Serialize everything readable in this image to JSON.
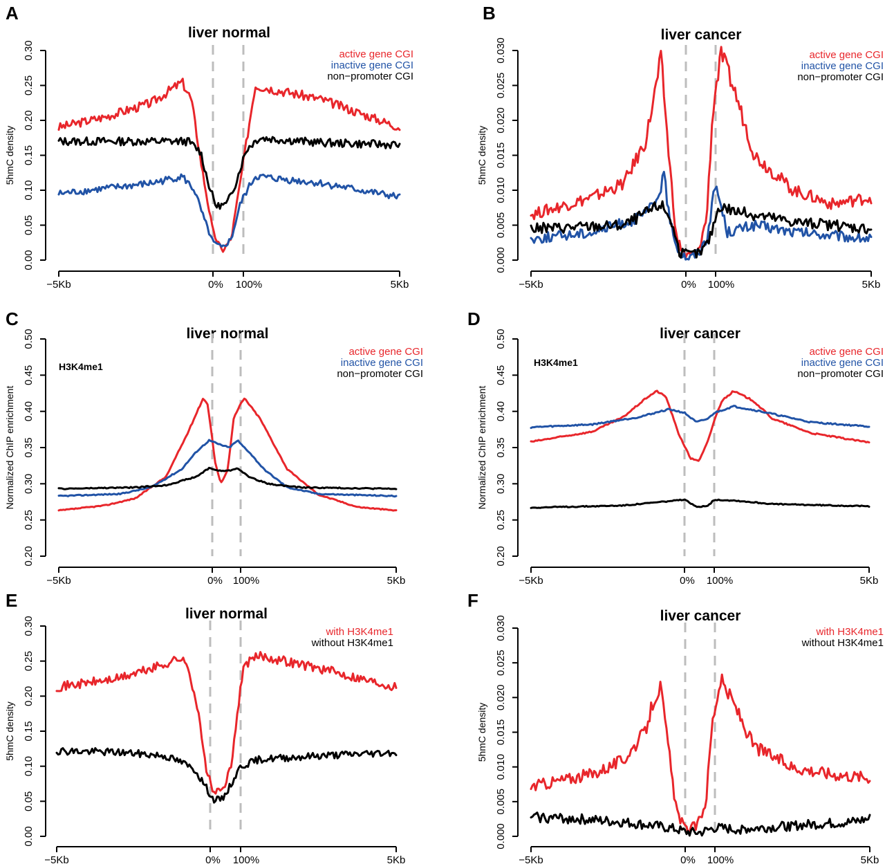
{
  "colors": {
    "red": "#e8262b",
    "blue": "#2153a6",
    "black": "#000000",
    "dash": "#bdbdbd"
  },
  "chart_data": [
    {
      "panel": "A",
      "type": "line",
      "title": "liver normal",
      "ylabel": "5hmC density",
      "ylim": [
        0,
        0.3
      ],
      "yticks": [
        "0.00",
        "0.05",
        "0.10",
        "0.15",
        "0.20",
        "0.25",
        "0.30"
      ],
      "xticks": [
        "−5Kb",
        "0%",
        "100%",
        "5Kb"
      ],
      "xlim": [
        -5000,
        5000
      ],
      "region": [
        0,
        100
      ],
      "legend": [
        "active gene CGI",
        "inactive gene CGI",
        "non−promoter CGI"
      ],
      "annotation": "",
      "series": [
        {
          "name": "active gene CGI",
          "color": "#e8262b",
          "x": [
            -5000,
            -3500,
            -2000,
            -1000,
            -700,
            -350,
            0,
            300,
            600,
            1000,
            1300,
            3000,
            5000
          ],
          "y": [
            0.19,
            0.205,
            0.225,
            0.255,
            0.23,
            0.13,
            0.04,
            0.013,
            0.03,
            0.14,
            0.25,
            0.23,
            0.19
          ]
        },
        {
          "name": "inactive gene CGI",
          "color": "#2153a6",
          "x": [
            -5000,
            -2000,
            -1000,
            -600,
            -300,
            0,
            300,
            600,
            900,
            1300,
            3000,
            5000
          ],
          "y": [
            0.095,
            0.11,
            0.12,
            0.1,
            0.06,
            0.025,
            0.017,
            0.03,
            0.08,
            0.12,
            0.11,
            0.09
          ]
        },
        {
          "name": "non−promoter CGI",
          "color": "#000000",
          "x": [
            -5000,
            -2000,
            -800,
            -400,
            -150,
            100,
            450,
            750,
            1100,
            1400,
            3000,
            5000
          ],
          "y": [
            0.17,
            0.17,
            0.17,
            0.155,
            0.11,
            0.077,
            0.08,
            0.11,
            0.16,
            0.175,
            0.168,
            0.165
          ]
        }
      ]
    },
    {
      "panel": "B",
      "type": "line",
      "title": "liver cancer",
      "ylabel": "5hmC density",
      "ylim": [
        0,
        0.03
      ],
      "yticks": [
        "0.000",
        "0.005",
        "0.010",
        "0.015",
        "0.020",
        "0.025",
        "0.030"
      ],
      "xticks": [
        "−5Kb",
        "0%",
        "100%",
        "5Kb"
      ],
      "xlim": [
        -5000,
        5000
      ],
      "region": [
        0,
        100
      ],
      "legend": [
        "active gene CGI",
        "inactive gene CGI",
        "non−promoter CGI"
      ],
      "annotation": "",
      "series": [
        {
          "name": "active gene CGI",
          "color": "#e8262b",
          "x": [
            -5000,
            -3000,
            -2000,
            -1300,
            -1000,
            -800,
            -550,
            -300,
            0,
            400,
            700,
            900,
            1150,
            1500,
            2000,
            3000,
            4000,
            5000
          ],
          "y": [
            0.0065,
            0.009,
            0.011,
            0.017,
            0.024,
            0.029,
            0.015,
            0.003,
            0.0005,
            0.001,
            0.006,
            0.021,
            0.0295,
            0.024,
            0.015,
            0.01,
            0.008,
            0.009
          ]
        },
        {
          "name": "inactive gene CGI",
          "color": "#2153a6",
          "x": [
            -5000,
            -3000,
            -1500,
            -1000,
            -700,
            -500,
            -200,
            100,
            400,
            700,
            1000,
            1300,
            2000,
            3000,
            5000
          ],
          "y": [
            0.003,
            0.004,
            0.006,
            0.008,
            0.012,
            0.005,
            0.001,
            0.0003,
            0.001,
            0.003,
            0.011,
            0.004,
            0.005,
            0.004,
            0.003
          ]
        },
        {
          "name": "non−promoter CGI",
          "color": "#000000",
          "x": [
            -5000,
            -2000,
            -800,
            -500,
            -200,
            100,
            500,
            800,
            1100,
            1500,
            3000,
            5000
          ],
          "y": [
            0.0045,
            0.005,
            0.008,
            0.006,
            0.001,
            0.0008,
            0.001,
            0.003,
            0.0078,
            0.007,
            0.0055,
            0.0045
          ]
        }
      ]
    },
    {
      "panel": "C",
      "type": "line",
      "title": "liver normal",
      "ylabel": "Normalized ChIP enrichment",
      "ylim": [
        0.2,
        0.5
      ],
      "yticks": [
        "0.20",
        "0.25",
        "0.30",
        "0.35",
        "0.40",
        "0.45",
        "0.50"
      ],
      "xticks": [
        "−5Kb",
        "0%",
        "100%",
        "5Kb"
      ],
      "xlim": [
        -5000,
        5000
      ],
      "region": [
        0,
        100
      ],
      "legend": [
        "active gene CGI",
        "inactive gene CGI",
        "non−promoter CGI"
      ],
      "annotation": "H3K4me1",
      "series": [
        {
          "name": "active gene CGI",
          "color": "#e8262b",
          "x": [
            -5000,
            -3500,
            -2500,
            -1500,
            -800,
            -300,
            -150,
            100,
            300,
            550,
            750,
            1100,
            1500,
            2200,
            3000,
            4000,
            5000
          ],
          "y": [
            0.263,
            0.27,
            0.28,
            0.31,
            0.37,
            0.418,
            0.41,
            0.33,
            0.3,
            0.32,
            0.39,
            0.418,
            0.39,
            0.32,
            0.285,
            0.268,
            0.263
          ]
        },
        {
          "name": "inactive gene CGI",
          "color": "#2153a6",
          "x": [
            -5000,
            -3000,
            -2000,
            -1000,
            -500,
            -100,
            200,
            600,
            900,
            1200,
            1600,
            2200,
            3000,
            5000
          ],
          "y": [
            0.283,
            0.286,
            0.295,
            0.32,
            0.345,
            0.36,
            0.355,
            0.35,
            0.36,
            0.345,
            0.32,
            0.295,
            0.286,
            0.283
          ]
        },
        {
          "name": "non−promoter CGI",
          "color": "#000000",
          "x": [
            -5000,
            -2500,
            -1500,
            -500,
            -100,
            200,
            600,
            900,
            1200,
            1700,
            2500,
            5000
          ],
          "y": [
            0.293,
            0.295,
            0.298,
            0.31,
            0.322,
            0.318,
            0.318,
            0.322,
            0.31,
            0.3,
            0.295,
            0.293
          ]
        }
      ]
    },
    {
      "panel": "D",
      "type": "line",
      "title": "liver cancer",
      "ylabel": "Normalized ChIP enrichment",
      "ylim": [
        0.2,
        0.5
      ],
      "yticks": [
        "0.20",
        "0.25",
        "0.30",
        "0.35",
        "0.40",
        "0.45",
        "0.50"
      ],
      "xticks": [
        "−5Kb",
        "0%",
        "100%",
        "5Kb"
      ],
      "xlim": [
        -5000,
        5000
      ],
      "region": [
        0,
        100
      ],
      "legend": [
        "active gene CGI",
        "inactive gene CGI",
        "non−promoter CGI"
      ],
      "annotation": "H3K4me1",
      "series": [
        {
          "name": "active gene CGI",
          "color": "#e8262b",
          "x": [
            -5000,
            -3000,
            -2000,
            -1200,
            -900,
            -600,
            -200,
            200,
            500,
            800,
            1200,
            1500,
            2000,
            2500,
            3500,
            5000
          ],
          "y": [
            0.358,
            0.372,
            0.392,
            0.42,
            0.428,
            0.42,
            0.37,
            0.335,
            0.332,
            0.36,
            0.415,
            0.428,
            0.415,
            0.39,
            0.37,
            0.357
          ]
        },
        {
          "name": "inactive gene CGI",
          "color": "#2153a6",
          "x": [
            -5000,
            -3000,
            -1500,
            -500,
            0,
            400,
            800,
            1000,
            1500,
            2200,
            3500,
            5000
          ],
          "y": [
            0.378,
            0.382,
            0.392,
            0.403,
            0.398,
            0.385,
            0.39,
            0.398,
            0.407,
            0.4,
            0.385,
            0.379
          ]
        },
        {
          "name": "non−promoter CGI",
          "color": "#000000",
          "x": [
            -5000,
            -2000,
            -500,
            0,
            400,
            800,
            1000,
            1500,
            2500,
            5000
          ],
          "y": [
            0.267,
            0.27,
            0.276,
            0.278,
            0.268,
            0.27,
            0.278,
            0.277,
            0.272,
            0.269
          ]
        }
      ]
    },
    {
      "panel": "E",
      "type": "line",
      "title": "liver normal",
      "ylabel": "5hmC density",
      "ylim": [
        0,
        0.3
      ],
      "yticks": [
        "0.00",
        "0.05",
        "0.10",
        "0.15",
        "0.20",
        "0.25",
        "0.30"
      ],
      "xticks": [
        "−5Kb",
        "0%",
        "100%",
        "5Kb"
      ],
      "xlim": [
        -5000,
        5000
      ],
      "region": [
        0,
        100
      ],
      "legend": [
        "with H3K4me1",
        "without H3K4me1"
      ],
      "annotation": "",
      "series": [
        {
          "name": "with H3K4me1",
          "color": "#e8262b",
          "x": [
            -5000,
            -3000,
            -1500,
            -1000,
            -700,
            -400,
            -150,
            100,
            400,
            700,
            900,
            1100,
            1500,
            3000,
            5000
          ],
          "y": [
            0.213,
            0.225,
            0.245,
            0.255,
            0.24,
            0.18,
            0.1,
            0.063,
            0.065,
            0.1,
            0.18,
            0.245,
            0.258,
            0.24,
            0.213
          ]
        },
        {
          "name": "without H3K4me1",
          "color": "#000000",
          "x": [
            -5000,
            -3000,
            -1500,
            -900,
            -500,
            -200,
            100,
            400,
            700,
            1000,
            1500,
            3000,
            5000
          ],
          "y": [
            0.122,
            0.12,
            0.115,
            0.105,
            0.095,
            0.075,
            0.052,
            0.053,
            0.075,
            0.1,
            0.11,
            0.115,
            0.12
          ]
        }
      ]
    },
    {
      "panel": "F",
      "type": "line",
      "title": "liver cancer",
      "ylabel": "5hmC density",
      "ylim": [
        0,
        0.03
      ],
      "yticks": [
        "0.000",
        "0.005",
        "0.010",
        "0.015",
        "0.020",
        "0.025",
        "0.030"
      ],
      "xticks": [
        "−5Kb",
        "0%",
        "100%",
        "5Kb"
      ],
      "xlim": [
        -5000,
        5000
      ],
      "region": [
        0,
        100
      ],
      "legend": [
        "with H3K4me1",
        "without H3K4me1"
      ],
      "annotation": "",
      "series": [
        {
          "name": "with H3K4me1",
          "color": "#e8262b",
          "x": [
            -5000,
            -3000,
            -2000,
            -1300,
            -1000,
            -800,
            -550,
            -300,
            0,
            400,
            700,
            900,
            1150,
            1500,
            2000,
            3000,
            4000,
            5000
          ],
          "y": [
            0.0072,
            0.009,
            0.011,
            0.015,
            0.02,
            0.0215,
            0.013,
            0.004,
            0.001,
            0.0015,
            0.005,
            0.016,
            0.0225,
            0.019,
            0.013,
            0.01,
            0.009,
            0.0085
          ]
        },
        {
          "name": "without H3K4me1",
          "color": "#000000",
          "x": [
            -5000,
            -3500,
            -2000,
            -1000,
            -300,
            0,
            500,
            1000,
            1500,
            2500,
            3500,
            4500,
            5000
          ],
          "y": [
            0.0028,
            0.0025,
            0.002,
            0.0015,
            0.001,
            0.0006,
            0.0005,
            0.0012,
            0.001,
            0.0013,
            0.0017,
            0.002,
            0.0025
          ]
        }
      ]
    }
  ]
}
